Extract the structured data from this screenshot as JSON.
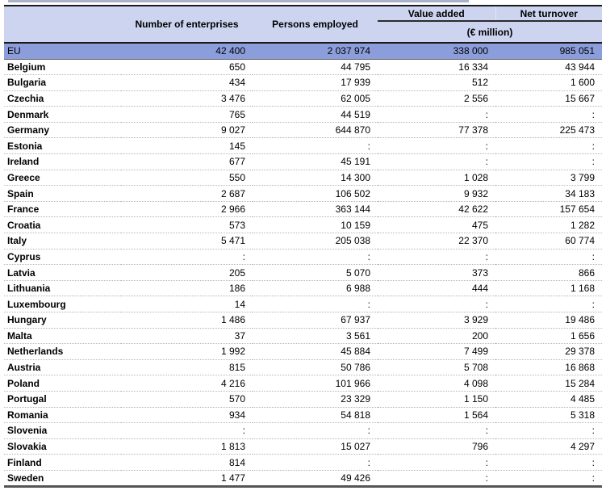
{
  "chart_data": {
    "type": "table",
    "columns": [
      "",
      "Number of enterprises",
      "Persons employed",
      "Value added",
      "Net turnover"
    ],
    "unit_subheader": "(€ million)",
    "unit_applies_to": [
      "Value added",
      "Net turnover"
    ],
    "missing_value_symbol": ":",
    "eu_row": {
      "name": "EU",
      "values": [
        "42 400",
        "2 037 974",
        "338 000",
        "985 051"
      ]
    },
    "rows": [
      {
        "name": "Belgium",
        "values": [
          "650",
          "44 795",
          "16 334",
          "43 944"
        ]
      },
      {
        "name": "Bulgaria",
        "values": [
          "434",
          "17 939",
          "512",
          "1 600"
        ]
      },
      {
        "name": "Czechia",
        "values": [
          "3 476",
          "62 005",
          "2 556",
          "15 667"
        ]
      },
      {
        "name": "Denmark",
        "values": [
          "765",
          "44 519",
          ":",
          ":"
        ]
      },
      {
        "name": "Germany",
        "values": [
          "9 027",
          "644 870",
          "77 378",
          "225 473"
        ]
      },
      {
        "name": "Estonia",
        "values": [
          "145",
          ":",
          ":",
          ":"
        ]
      },
      {
        "name": "Ireland",
        "values": [
          "677",
          "45 191",
          ":",
          ":"
        ]
      },
      {
        "name": "Greece",
        "values": [
          "550",
          "14 300",
          "1 028",
          "3 799"
        ]
      },
      {
        "name": "Spain",
        "values": [
          "2 687",
          "106 502",
          "9 932",
          "34 183"
        ]
      },
      {
        "name": "France",
        "values": [
          "2 966",
          "363 144",
          "42 622",
          "157 654"
        ]
      },
      {
        "name": "Croatia",
        "values": [
          "573",
          "10 159",
          "475",
          "1 282"
        ]
      },
      {
        "name": "Italy",
        "values": [
          "5 471",
          "205 038",
          "22 370",
          "60 774"
        ]
      },
      {
        "name": "Cyprus",
        "values": [
          ":",
          ":",
          ":",
          ":"
        ]
      },
      {
        "name": "Latvia",
        "values": [
          "205",
          "5 070",
          "373",
          "866"
        ]
      },
      {
        "name": "Lithuania",
        "values": [
          "186",
          "6 988",
          "444",
          "1 168"
        ]
      },
      {
        "name": "Luxembourg",
        "values": [
          "14",
          ":",
          ":",
          ":"
        ]
      },
      {
        "name": "Hungary",
        "values": [
          "1 486",
          "67 937",
          "3 929",
          "19 486"
        ]
      },
      {
        "name": "Malta",
        "values": [
          "37",
          "3 561",
          "200",
          "1 656"
        ]
      },
      {
        "name": "Netherlands",
        "values": [
          "1 992",
          "45 884",
          "7 499",
          "29 378"
        ]
      },
      {
        "name": "Austria",
        "values": [
          "815",
          "50 786",
          "5 708",
          "16 868"
        ]
      },
      {
        "name": "Poland",
        "values": [
          "4 216",
          "101 966",
          "4 098",
          "15 284"
        ]
      },
      {
        "name": "Portugal",
        "values": [
          "570",
          "23 329",
          "1 150",
          "4 485"
        ]
      },
      {
        "name": "Romania",
        "values": [
          "934",
          "54 818",
          "1 564",
          "5 318"
        ]
      },
      {
        "name": "Slovenia",
        "values": [
          ":",
          ":",
          ":",
          ":"
        ]
      },
      {
        "name": "Slovakia",
        "values": [
          "1 813",
          "15 027",
          "796",
          "4 297"
        ]
      },
      {
        "name": "Finland",
        "values": [
          "814",
          ":",
          ":",
          ":"
        ]
      },
      {
        "name": "Sweden",
        "values": [
          "1 477",
          "49 426",
          ":",
          ":"
        ]
      }
    ]
  },
  "style": {
    "colors": {
      "header_bg": "#ccd4ef",
      "eu_row_bg": "#8c9ddb",
      "text": "#000000"
    }
  }
}
